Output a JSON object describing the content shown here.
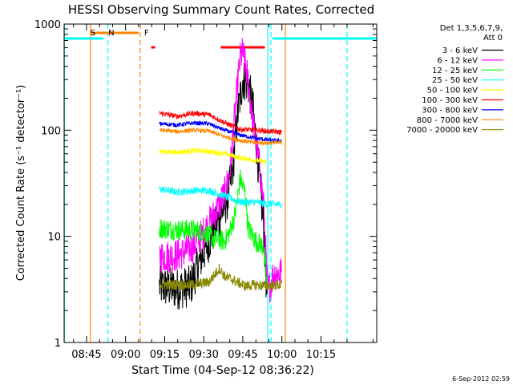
{
  "chart_data": {
    "type": "line",
    "title": "HESSI Observing Summary Count Rates, Corrected",
    "xlabel": "Start Time (04-Sep-12 08:36:22)",
    "ylabel": "Corrected Count Rate (s⁻¹ detector⁻¹)",
    "yscale": "log",
    "ylim": [
      1,
      1000
    ],
    "xlim_minutes": [
      36.4,
      156.4
    ],
    "x_ticks": [
      {
        "m": 45,
        "label": "08:45"
      },
      {
        "m": 60,
        "label": "09:00"
      },
      {
        "m": 75,
        "label": "09:15"
      },
      {
        "m": 90,
        "label": "09:30"
      },
      {
        "m": 105,
        "label": "09:45"
      },
      {
        "m": 120,
        "label": "10:00"
      },
      {
        "m": 135,
        "label": "10:15"
      }
    ],
    "y_ticks": [
      {
        "v": 1,
        "label": "1"
      },
      {
        "v": 10,
        "label": "10"
      },
      {
        "v": 100,
        "label": "100"
      },
      {
        "v": 1000,
        "label": "1000"
      }
    ],
    "legend": {
      "placement": "right",
      "header": [
        "Det 1,3,5,6,7,9,",
        "Att 0"
      ]
    },
    "series": [
      {
        "name": "3 - 6 keV",
        "color": "#000000",
        "points": [
          [
            73,
            3.4
          ],
          [
            80,
            3.2
          ],
          [
            85,
            3.4
          ],
          [
            88,
            5.5
          ],
          [
            92,
            9
          ],
          [
            96,
            15
          ],
          [
            99,
            22
          ],
          [
            101,
            40
          ],
          [
            103,
            140
          ],
          [
            105,
            300
          ],
          [
            107,
            280
          ],
          [
            109,
            150
          ],
          [
            111,
            45
          ],
          [
            113,
            12
          ],
          [
            114.5,
            2
          ]
        ]
      },
      {
        "name": "6 - 12 keV",
        "color": "#ff00ff",
        "points": [
          [
            73,
            6.5
          ],
          [
            78,
            6.5
          ],
          [
            82,
            7
          ],
          [
            86,
            8
          ],
          [
            90,
            11
          ],
          [
            94,
            16
          ],
          [
            98,
            25
          ],
          [
            100,
            40
          ],
          [
            102,
            150
          ],
          [
            104,
            480
          ],
          [
            105,
            540
          ],
          [
            107,
            300
          ],
          [
            109,
            110
          ],
          [
            111,
            55
          ],
          [
            113,
            20
          ],
          [
            114.5,
            3
          ],
          [
            117,
            4.5
          ],
          [
            120,
            4.5
          ]
        ]
      },
      {
        "name": "12 - 25 keV",
        "color": "#00ff00",
        "points": [
          [
            73,
            12
          ],
          [
            80,
            11.5
          ],
          [
            86,
            11.5
          ],
          [
            90,
            11
          ],
          [
            94,
            9.5
          ],
          [
            98,
            9
          ],
          [
            100,
            11
          ],
          [
            102,
            16
          ],
          [
            104,
            35
          ],
          [
            106,
            25
          ],
          [
            107,
            12
          ],
          [
            110,
            9
          ],
          [
            113,
            8
          ],
          [
            114.5,
            3
          ]
        ]
      },
      {
        "name": "25 - 50 keV",
        "color": "#00ffff",
        "points": [
          [
            73,
            28
          ],
          [
            80,
            26
          ],
          [
            86,
            27
          ],
          [
            92,
            27
          ],
          [
            98,
            24
          ],
          [
            104,
            21
          ],
          [
            110,
            21
          ],
          [
            116,
            20
          ],
          [
            120,
            20
          ]
        ]
      },
      {
        "name": "50 - 100 keV",
        "color": "#ffff00",
        "points": [
          [
            73,
            63
          ],
          [
            80,
            62
          ],
          [
            86,
            64
          ],
          [
            92,
            63
          ],
          [
            98,
            60
          ],
          [
            104,
            55
          ],
          [
            110,
            52
          ],
          [
            114,
            50
          ]
        ]
      },
      {
        "name": "100 - 300 keV",
        "color": "#ff0000",
        "points": [
          [
            73,
            145
          ],
          [
            80,
            135
          ],
          [
            86,
            145
          ],
          [
            92,
            140
          ],
          [
            98,
            118
          ],
          [
            104,
            102
          ],
          [
            110,
            100
          ],
          [
            116,
            97
          ],
          [
            120,
            96
          ]
        ]
      },
      {
        "name": "300 - 800 keV",
        "color": "#0000ff",
        "points": [
          [
            73,
            115
          ],
          [
            80,
            112
          ],
          [
            86,
            117
          ],
          [
            92,
            115
          ],
          [
            98,
            100
          ],
          [
            104,
            90
          ],
          [
            110,
            84
          ],
          [
            116,
            80
          ],
          [
            120,
            80
          ]
        ]
      },
      {
        "name": "800 - 7000 keV",
        "color": "#ff8800",
        "points": [
          [
            73,
            100
          ],
          [
            80,
            97
          ],
          [
            86,
            100
          ],
          [
            92,
            98
          ],
          [
            98,
            87
          ],
          [
            104,
            80
          ],
          [
            110,
            76
          ],
          [
            116,
            76
          ],
          [
            120,
            76
          ]
        ]
      },
      {
        "name": "7000 - 20000 keV",
        "color": "#888800",
        "points": [
          [
            73,
            3.5
          ],
          [
            80,
            3.5
          ],
          [
            86,
            3.5
          ],
          [
            92,
            3.7
          ],
          [
            96,
            5
          ],
          [
            98,
            4.2
          ],
          [
            102,
            3.8
          ],
          [
            106,
            3.4
          ],
          [
            110,
            3.5
          ],
          [
            114,
            3.4
          ],
          [
            120,
            3.5
          ]
        ]
      }
    ],
    "annotations": {
      "letters": [
        {
          "text": "S",
          "m": 47.5,
          "color": "#ff8800"
        },
        {
          "text": "N",
          "m": 54.5,
          "color": "#00ffff"
        },
        {
          "text": "F",
          "m": 68.0,
          "color": "#ff0000"
        }
      ],
      "cyan_solid_bars": [
        [
          36.4,
          51.5
        ],
        [
          116.5,
          156.4
        ]
      ],
      "orange_bar": [
        46.5,
        65.0
      ],
      "red_bars": [
        [
          69.8,
          71.3
        ],
        [
          96.5,
          113.5
        ]
      ],
      "vlines": [
        {
          "m": 36.5,
          "color": "#00ffff",
          "style": "solid"
        },
        {
          "m": 46.5,
          "color": "#ff8800",
          "style": "solid"
        },
        {
          "m": 53.2,
          "color": "#00ffff",
          "style": "dashed"
        },
        {
          "m": 65.6,
          "color": "#ff8800",
          "style": "dashed"
        },
        {
          "m": 114.6,
          "color": "#00ffff",
          "style": "solid"
        },
        {
          "m": 115.8,
          "color": "#00ffff",
          "style": "dashed"
        },
        {
          "m": 121.3,
          "color": "#ff8800",
          "style": "solid"
        },
        {
          "m": 145.0,
          "color": "#00ffff",
          "style": "dashed"
        }
      ]
    },
    "timestamp": "6-Sep-2012 02:59"
  }
}
